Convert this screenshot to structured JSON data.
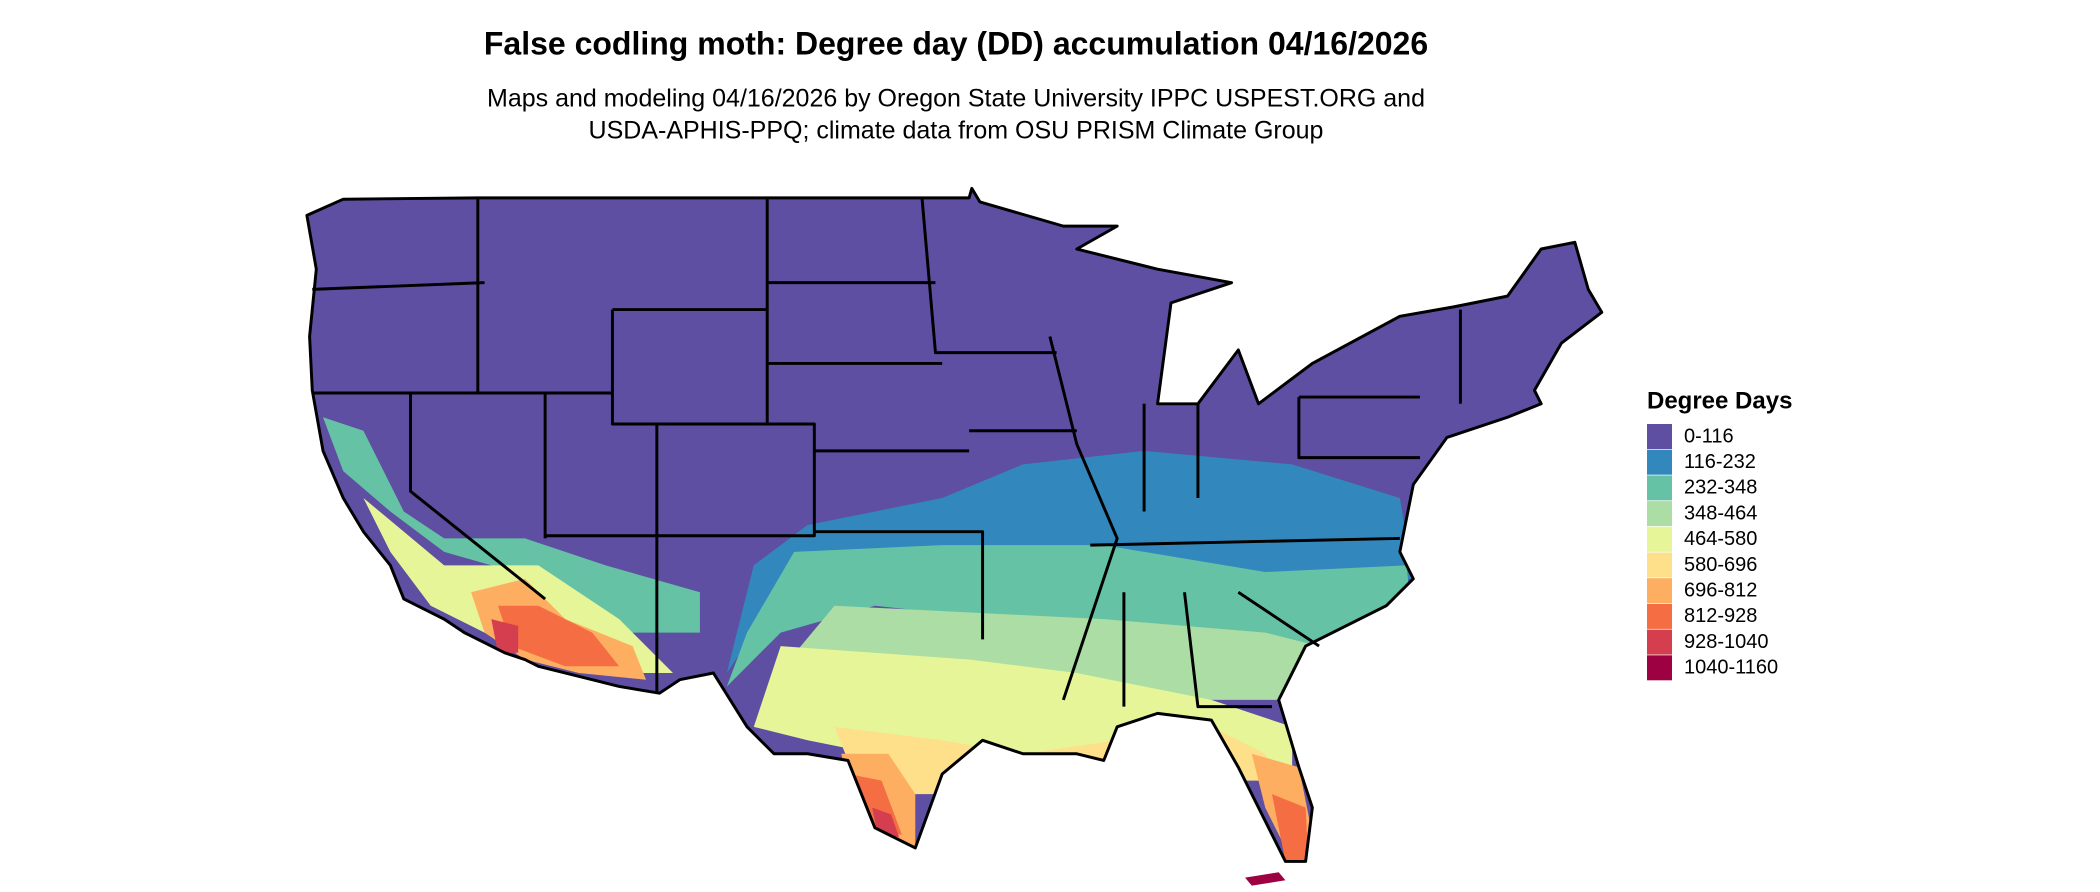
{
  "header": {
    "title": "False codling moth: Degree day (DD) accumulation 04/16/2026",
    "subtitle": [
      "Maps and modeling 04/16/2026 by Oregon State University IPPC USPEST.ORG and",
      "USDA-APHIS-PPQ; climate data from OSU PRISM Climate Group"
    ]
  },
  "legend": {
    "title": "Degree Days",
    "items": [
      {
        "label": "0-116",
        "color": "#5e4fa2"
      },
      {
        "label": "116-232",
        "color": "#3288bd"
      },
      {
        "label": "232-348",
        "color": "#66c2a5"
      },
      {
        "label": "348-464",
        "color": "#abdda4"
      },
      {
        "label": "464-580",
        "color": "#e6f598"
      },
      {
        "label": "580-696",
        "color": "#fee08b"
      },
      {
        "label": "696-812",
        "color": "#fdae61"
      },
      {
        "label": "812-928",
        "color": "#f46d43"
      },
      {
        "label": "928-1040",
        "color": "#d53e4f"
      },
      {
        "label": "1040-1160",
        "color": "#9e0142"
      }
    ]
  }
}
